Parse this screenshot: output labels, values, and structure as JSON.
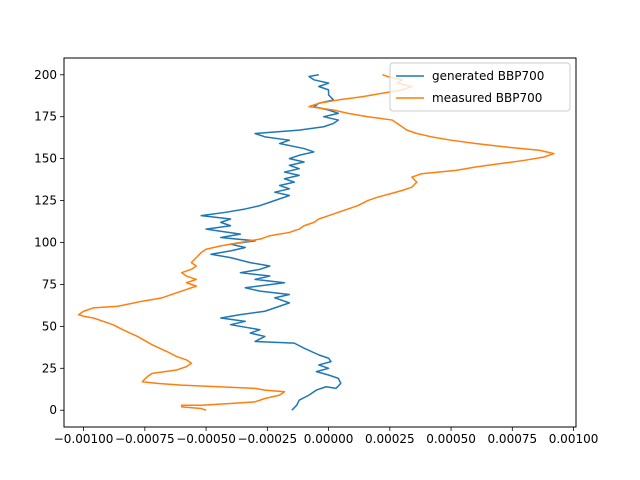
{
  "chart_data": {
    "type": "line",
    "title": "",
    "xlabel": "",
    "ylabel": "",
    "xlim": [
      -0.00108,
      0.00101
    ],
    "ylim": [
      210,
      -10
    ],
    "y_inverted": true,
    "grid": false,
    "legend": "top-right",
    "x_ticks": [
      {
        "value": -0.001,
        "label": "−0.00100"
      },
      {
        "value": -0.00075,
        "label": "−0.00075"
      },
      {
        "value": -0.0005,
        "label": "−0.00050"
      },
      {
        "value": -0.00025,
        "label": "−0.00025"
      },
      {
        "value": 0,
        "label": "0.00000"
      },
      {
        "value": 0.00025,
        "label": "0.00025"
      },
      {
        "value": 0.0005,
        "label": "0.00050"
      },
      {
        "value": 0.00075,
        "label": "0.00075"
      },
      {
        "value": 0.001,
        "label": "0.00100"
      }
    ],
    "y_ticks": [
      {
        "value": 0,
        "label": "0"
      },
      {
        "value": 25,
        "label": "25"
      },
      {
        "value": 50,
        "label": "50"
      },
      {
        "value": 75,
        "label": "75"
      },
      {
        "value": 100,
        "label": "100"
      },
      {
        "value": 125,
        "label": "125"
      },
      {
        "value": 150,
        "label": "150"
      },
      {
        "value": 175,
        "label": "175"
      },
      {
        "value": 200,
        "label": "200"
      }
    ],
    "series": [
      {
        "name": "generated BBP700",
        "color": "#1f77b4",
        "points": [
          [
            -0.00015,
            0
          ],
          [
            -0.00013,
            3
          ],
          [
            -0.00012,
            6
          ],
          [
            -8e-05,
            9
          ],
          [
            -5e-05,
            12
          ],
          [
            -1e-05,
            14
          ],
          [
            3e-05,
            13
          ],
          [
            5e-05,
            16
          ],
          [
            4e-05,
            19
          ],
          [
            0.0,
            21
          ],
          [
            -5e-05,
            23
          ],
          [
            0.0,
            25
          ],
          [
            -4e-05,
            27
          ],
          [
            1e-05,
            29
          ],
          [
            0.0,
            31
          ],
          [
            -4e-05,
            33
          ],
          [
            -0.0001,
            37
          ],
          [
            -0.00014,
            40
          ],
          [
            -0.0003,
            41
          ],
          [
            -0.00026,
            44
          ],
          [
            -0.00032,
            46
          ],
          [
            -0.00028,
            48
          ],
          [
            -0.0004,
            51
          ],
          [
            -0.00034,
            53
          ],
          [
            -0.00044,
            55
          ],
          [
            -0.00036,
            57
          ],
          [
            -0.00026,
            59
          ],
          [
            -0.0002,
            62
          ],
          [
            -0.00016,
            64
          ],
          [
            -0.00022,
            67
          ],
          [
            -0.00016,
            69
          ],
          [
            -0.00028,
            71
          ],
          [
            -0.00034,
            73
          ],
          [
            -0.00018,
            76
          ],
          [
            -0.0003,
            78
          ],
          [
            -0.00024,
            80
          ],
          [
            -0.00036,
            82
          ],
          [
            -0.00028,
            84
          ],
          [
            -0.00024,
            86
          ],
          [
            -0.00032,
            88
          ],
          [
            -0.0004,
            91
          ],
          [
            -0.00048,
            93
          ],
          [
            -0.0004,
            95
          ],
          [
            -0.00034,
            97
          ],
          [
            -0.0004,
            99
          ],
          [
            -0.0003,
            101
          ],
          [
            -0.00044,
            103
          ],
          [
            -0.00036,
            105
          ],
          [
            -0.0005,
            108
          ],
          [
            -0.0004,
            110
          ],
          [
            -0.00044,
            112
          ],
          [
            -0.0004,
            114
          ],
          [
            -0.00052,
            116
          ],
          [
            -0.00042,
            118
          ],
          [
            -0.00034,
            120
          ],
          [
            -0.00028,
            122
          ],
          [
            -0.00024,
            124
          ],
          [
            -0.0002,
            126
          ],
          [
            -0.00016,
            128
          ],
          [
            -0.00022,
            130
          ],
          [
            -0.00016,
            132
          ],
          [
            -0.0002,
            134
          ],
          [
            -0.00014,
            136
          ],
          [
            -0.00018,
            138
          ],
          [
            -0.00012,
            140
          ],
          [
            -0.00018,
            142
          ],
          [
            -0.00012,
            144
          ],
          [
            -0.00016,
            146
          ],
          [
            -0.0001,
            148
          ],
          [
            -0.00016,
            150
          ],
          [
            -0.00012,
            152
          ],
          [
            -6e-05,
            154
          ],
          [
            -0.0001,
            156
          ],
          [
            -0.0002,
            159
          ],
          [
            -0.00016,
            161
          ],
          [
            -0.00026,
            163
          ],
          [
            -0.0003,
            165
          ],
          [
            -0.00012,
            167
          ],
          [
            -2e-05,
            169
          ],
          [
            2e-05,
            171
          ],
          [
            4e-05,
            173
          ],
          [
            -2e-05,
            175
          ],
          [
            4e-05,
            177
          ],
          [
            0.0,
            179
          ],
          [
            -6e-05,
            181
          ],
          [
            -4e-05,
            183
          ],
          [
            2e-05,
            185
          ],
          [
            0.0,
            188
          ],
          [
            0.0,
            191
          ],
          [
            -4e-05,
            193
          ],
          [
            0.0,
            195
          ],
          [
            -6e-05,
            197
          ],
          [
            -8e-05,
            199
          ],
          [
            -4e-05,
            200
          ]
        ]
      },
      {
        "name": "measured BBP700",
        "color": "#ff7f0e",
        "points": [
          [
            -0.0005,
            0
          ],
          [
            -0.00052,
            1
          ],
          [
            -0.0006,
            2
          ],
          [
            -0.0006,
            3
          ],
          [
            -0.00052,
            3
          ],
          [
            -0.0004,
            4
          ],
          [
            -0.0003,
            5
          ],
          [
            -0.00026,
            7
          ],
          [
            -0.0002,
            9
          ],
          [
            -0.00018,
            11
          ],
          [
            -0.00026,
            12
          ],
          [
            -0.0003,
            13
          ],
          [
            -0.00045,
            14
          ],
          [
            -0.0006,
            15
          ],
          [
            -0.0007,
            16
          ],
          [
            -0.00076,
            17
          ],
          [
            -0.00074,
            20
          ],
          [
            -0.00072,
            22
          ],
          [
            -0.00062,
            24
          ],
          [
            -0.00058,
            26
          ],
          [
            -0.00056,
            28
          ],
          [
            -0.00058,
            30
          ],
          [
            -0.00062,
            32
          ],
          [
            -0.00066,
            35
          ],
          [
            -0.00072,
            39
          ],
          [
            -0.00078,
            44
          ],
          [
            -0.00084,
            48
          ],
          [
            -0.00088,
            51
          ],
          [
            -0.00092,
            53
          ],
          [
            -0.00096,
            55
          ],
          [
            -0.001,
            56
          ],
          [
            -0.00102,
            57
          ],
          [
            -0.001,
            59
          ],
          [
            -0.00096,
            61
          ],
          [
            -0.00086,
            62
          ],
          [
            -0.00076,
            65
          ],
          [
            -0.00068,
            67
          ],
          [
            -0.00062,
            70
          ],
          [
            -0.00058,
            72
          ],
          [
            -0.00054,
            74
          ],
          [
            -0.00058,
            76
          ],
          [
            -0.00054,
            78
          ],
          [
            -0.00058,
            80
          ],
          [
            -0.0006,
            82
          ],
          [
            -0.00056,
            84
          ],
          [
            -0.00054,
            86
          ],
          [
            -0.00056,
            88
          ],
          [
            -0.00054,
            91
          ],
          [
            -0.00052,
            94
          ],
          [
            -0.0005,
            96
          ],
          [
            -0.00044,
            98
          ],
          [
            -0.00036,
            100
          ],
          [
            -0.00028,
            102
          ],
          [
            -0.00024,
            104
          ],
          [
            -0.00016,
            106
          ],
          [
            -0.00012,
            108
          ],
          [
            -0.0001,
            110
          ],
          [
            -6e-05,
            112
          ],
          [
            -4e-05,
            114
          ],
          [
            0.0,
            116
          ],
          [
            4e-05,
            118
          ],
          [
            8e-05,
            120
          ],
          [
            0.00012,
            122
          ],
          [
            0.00016,
            125
          ],
          [
            0.0002,
            127
          ],
          [
            0.00025,
            129
          ],
          [
            0.0003,
            131
          ],
          [
            0.00034,
            133
          ],
          [
            0.00036,
            136
          ],
          [
            0.00034,
            139
          ],
          [
            0.00038,
            141
          ],
          [
            0.00052,
            143
          ],
          [
            0.0006,
            145
          ],
          [
            0.0007,
            147
          ],
          [
            0.0008,
            149
          ],
          [
            0.00088,
            151
          ],
          [
            0.00092,
            153
          ],
          [
            0.00086,
            155
          ],
          [
            0.00072,
            157
          ],
          [
            0.0006,
            159
          ],
          [
            0.0005,
            161
          ],
          [
            0.00042,
            163
          ],
          [
            0.00036,
            165
          ],
          [
            0.00032,
            167
          ],
          [
            0.0003,
            169
          ],
          [
            0.00028,
            171
          ],
          [
            0.00026,
            173
          ],
          [
            0.00016,
            175
          ],
          [
            8e-05,
            177
          ],
          [
            2e-05,
            179
          ],
          [
            -8e-05,
            181
          ],
          [
            -4e-05,
            183
          ],
          [
            4e-05,
            185
          ],
          [
            0.00014,
            187
          ],
          [
            0.00022,
            189
          ],
          [
            0.0003,
            191
          ],
          [
            0.00034,
            193
          ],
          [
            0.00028,
            195
          ],
          [
            0.0003,
            197
          ],
          [
            0.00024,
            199
          ],
          [
            0.00022,
            200
          ]
        ]
      }
    ]
  }
}
